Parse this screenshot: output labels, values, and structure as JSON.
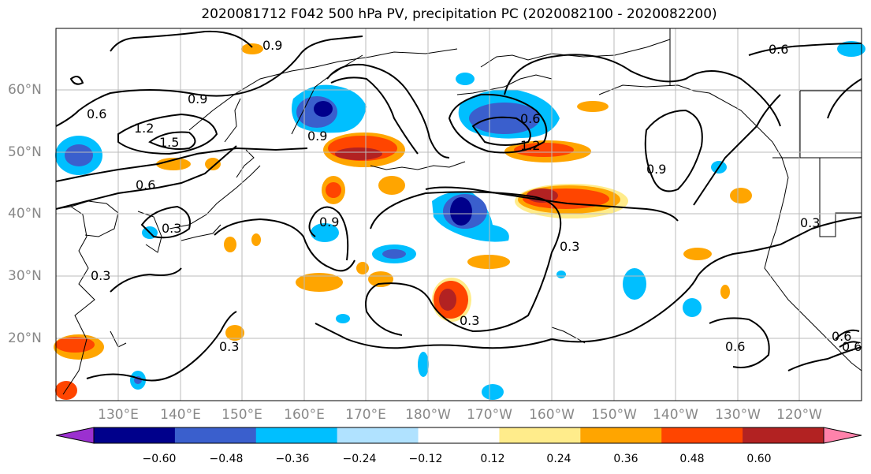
{
  "title": "2020081712 F042 500 hPa PV, precipitation PC (2020082100 - 2020082200)",
  "latitude_labels": [
    "60°N",
    "50°N",
    "40°N",
    "30°N",
    "20°N"
  ],
  "longitude_labels": [
    "130°E",
    "140°E",
    "150°E",
    "160°E",
    "170°E",
    "180°W",
    "170°W",
    "160°W",
    "150°W",
    "140°W",
    "130°W",
    "120°W"
  ],
  "contour_labels": [
    "0.9",
    "0.6",
    "0.9",
    "0.6",
    "1.2",
    "1.5",
    "0.9",
    "0.6",
    "0.6",
    "1.2",
    "0.9",
    "0.3",
    "0.9",
    "0.3",
    "0.3",
    "0.3",
    "0.3",
    "0.6",
    "0.6",
    "0.3",
    "0.6"
  ],
  "colorbar": {
    "tick_labels": [
      "−0.60",
      "−0.48",
      "−0.36",
      "−0.24",
      "−0.12",
      "0.12",
      "0.24",
      "0.36",
      "0.48",
      "0.60"
    ],
    "colors": [
      "#9b30d0",
      "#00008b",
      "#3a5fcd",
      "#00bfff",
      "#b0e2ff",
      "#ffffff",
      "#ffec8b",
      "#ffa500",
      "#ff4500",
      "#b22222",
      "#ff82ab"
    ]
  }
}
